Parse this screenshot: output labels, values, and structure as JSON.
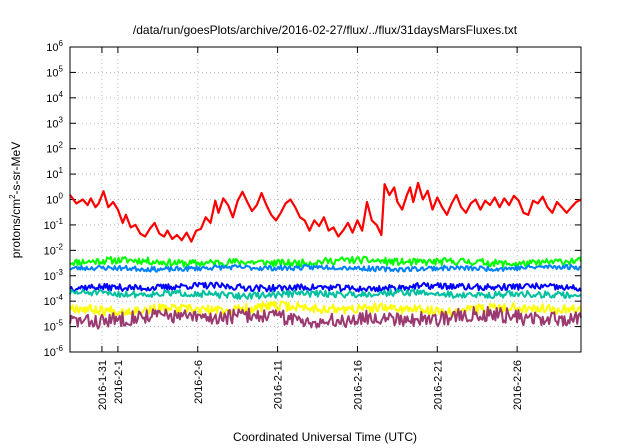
{
  "chart_data": {
    "type": "line",
    "title": "/data/run/goesPlots/archive/2016-02-27/flux/../flux/31daysMarsFluxes.txt",
    "xlabel": "Coordinated Universal Time (UTC)",
    "ylabel_parts": {
      "base": "protons/cm",
      "sup": "2",
      "rest": "-s-sr-MeV"
    },
    "x_range_days": [
      -3.0,
      29.0
    ],
    "x_origin_label": "2016-2-1",
    "y_scale": "log",
    "ylim": [
      1e-06,
      1000000.0
    ],
    "y_ticks": [
      {
        "value": -6,
        "base": "10",
        "exp": "-6"
      },
      {
        "value": -5,
        "base": "10",
        "exp": "-5"
      },
      {
        "value": -4,
        "base": "10",
        "exp": "-4"
      },
      {
        "value": -3,
        "base": "10",
        "exp": "-3"
      },
      {
        "value": -2,
        "base": "10",
        "exp": "-2"
      },
      {
        "value": -1,
        "base": "10",
        "exp": "-1"
      },
      {
        "value": 0,
        "base": "10",
        "exp": "0"
      },
      {
        "value": 1,
        "base": "10",
        "exp": "1"
      },
      {
        "value": 2,
        "base": "10",
        "exp": "2"
      },
      {
        "value": 3,
        "base": "10",
        "exp": "3"
      },
      {
        "value": 4,
        "base": "10",
        "exp": "4"
      },
      {
        "value": 5,
        "base": "10",
        "exp": "5"
      },
      {
        "value": 6,
        "base": "10",
        "exp": "6"
      }
    ],
    "x_ticks": [
      {
        "day": -1,
        "label": "2016-1-31"
      },
      {
        "day": 0,
        "label": "2016-2-1"
      },
      {
        "day": 5,
        "label": "2016-2-6"
      },
      {
        "day": 10,
        "label": "2016-2-11"
      },
      {
        "day": 15,
        "label": "2016-2-16"
      },
      {
        "day": 20,
        "label": "2016-2-21"
      },
      {
        "day": 25,
        "label": "2016-2-26"
      }
    ],
    "grid": true,
    "series": [
      {
        "color": "#ff0000",
        "points": [
          [
            -3.0,
            1.5
          ],
          [
            -2.6,
            0.7
          ],
          [
            -2.2,
            1.0
          ],
          [
            -1.9,
            0.6
          ],
          [
            -1.7,
            1.1
          ],
          [
            -1.4,
            0.5
          ],
          [
            -1.2,
            0.7
          ],
          [
            -0.9,
            2.1
          ],
          [
            -0.6,
            0.5
          ],
          [
            -0.3,
            0.8
          ],
          [
            0.0,
            0.4
          ],
          [
            0.3,
            0.12
          ],
          [
            0.5,
            0.25
          ],
          [
            0.8,
            0.08
          ],
          [
            1.1,
            0.1
          ],
          [
            1.4,
            0.045
          ],
          [
            1.7,
            0.035
          ],
          [
            2.0,
            0.07
          ],
          [
            2.3,
            0.12
          ],
          [
            2.6,
            0.045
          ],
          [
            2.9,
            0.035
          ],
          [
            3.1,
            0.06
          ],
          [
            3.4,
            0.028
          ],
          [
            3.7,
            0.04
          ],
          [
            4.0,
            0.025
          ],
          [
            4.3,
            0.05
          ],
          [
            4.6,
            0.022
          ],
          [
            4.9,
            0.06
          ],
          [
            5.2,
            0.07
          ],
          [
            5.5,
            0.2
          ],
          [
            5.8,
            0.12
          ],
          [
            6.1,
            0.9
          ],
          [
            6.3,
            0.3
          ],
          [
            6.6,
            1.1
          ],
          [
            6.9,
            0.6
          ],
          [
            7.2,
            0.2
          ],
          [
            7.5,
            0.9
          ],
          [
            7.8,
            2.0
          ],
          [
            8.1,
            0.8
          ],
          [
            8.4,
            0.35
          ],
          [
            8.7,
            0.6
          ],
          [
            9.0,
            1.8
          ],
          [
            9.3,
            0.6
          ],
          [
            9.6,
            0.25
          ],
          [
            9.9,
            0.15
          ],
          [
            10.2,
            0.3
          ],
          [
            10.5,
            0.7
          ],
          [
            10.8,
            1.0
          ],
          [
            11.1,
            0.5
          ],
          [
            11.4,
            0.2
          ],
          [
            11.7,
            0.15
          ],
          [
            12.0,
            0.06
          ],
          [
            12.3,
            0.15
          ],
          [
            12.6,
            0.09
          ],
          [
            12.9,
            0.2
          ],
          [
            13.2,
            0.06
          ],
          [
            13.5,
            0.08
          ],
          [
            13.8,
            0.035
          ],
          [
            14.1,
            0.06
          ],
          [
            14.4,
            0.12
          ],
          [
            14.7,
            0.05
          ],
          [
            15.0,
            0.15
          ],
          [
            15.3,
            0.06
          ],
          [
            15.6,
            0.8
          ],
          [
            15.9,
            0.15
          ],
          [
            16.2,
            0.1
          ],
          [
            16.5,
            0.04
          ],
          [
            16.7,
            4.0
          ],
          [
            17.0,
            1.5
          ],
          [
            17.3,
            3.0
          ],
          [
            17.5,
            0.8
          ],
          [
            17.8,
            0.4
          ],
          [
            18.1,
            1.5
          ],
          [
            18.3,
            3.0
          ],
          [
            18.5,
            0.8
          ],
          [
            18.8,
            4.5
          ],
          [
            19.1,
            1.0
          ],
          [
            19.4,
            2.2
          ],
          [
            19.7,
            0.4
          ],
          [
            20.0,
            1.2
          ],
          [
            20.3,
            0.5
          ],
          [
            20.6,
            0.25
          ],
          [
            20.9,
            0.7
          ],
          [
            21.2,
            1.5
          ],
          [
            21.5,
            0.5
          ],
          [
            21.8,
            0.3
          ],
          [
            22.1,
            0.7
          ],
          [
            22.4,
            1.0
          ],
          [
            22.7,
            0.4
          ],
          [
            23.0,
            0.9
          ],
          [
            23.3,
            0.6
          ],
          [
            23.6,
            1.2
          ],
          [
            23.9,
            0.5
          ],
          [
            24.2,
            1.1
          ],
          [
            24.5,
            0.6
          ],
          [
            24.8,
            1.4
          ],
          [
            25.1,
            0.9
          ],
          [
            25.4,
            0.3
          ],
          [
            25.7,
            0.25
          ],
          [
            26.0,
            0.9
          ],
          [
            26.3,
            0.7
          ],
          [
            26.6,
            1.3
          ],
          [
            26.9,
            0.5
          ],
          [
            27.2,
            0.3
          ],
          [
            27.5,
            0.8
          ],
          [
            27.8,
            0.5
          ],
          [
            28.1,
            0.3
          ],
          [
            28.4,
            0.5
          ],
          [
            28.7,
            0.8
          ],
          [
            29.0,
            1.0
          ]
        ]
      },
      {
        "color": "#00ff00",
        "base": 0.0035,
        "amp": 0.22,
        "seed": 11
      },
      {
        "color": "#0080ff",
        "base": 0.002,
        "amp": 0.15,
        "seed": 23
      },
      {
        "color": "#0000ff",
        "base": 0.00035,
        "amp": 0.2,
        "seed": 37
      },
      {
        "color": "#00c0a0",
        "base": 0.00019,
        "amp": 0.2,
        "seed": 51
      },
      {
        "color": "#ffff00",
        "base": 5e-05,
        "amp": 0.3,
        "seed": 67
      },
      {
        "color": "#9b3a70",
        "base": 2.2e-05,
        "amp": 0.45,
        "seed": 83
      }
    ]
  }
}
